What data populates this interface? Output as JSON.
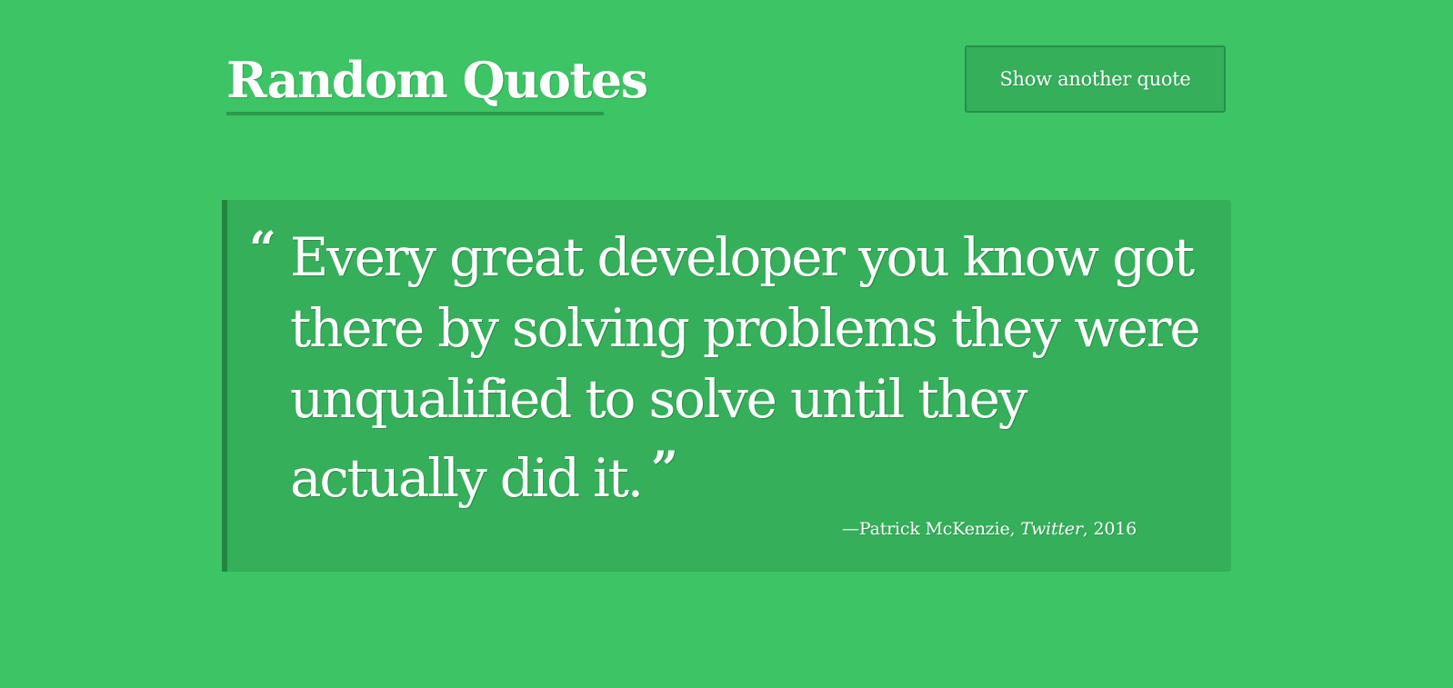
{
  "page": {
    "title": "Random Quotes",
    "background_color": "#3cc465",
    "accent_color": "#24853f"
  },
  "header": {
    "button_label": "Show another quote"
  },
  "quote": {
    "open_mark": "“",
    "text": "Every great developer you know got there by solving problems they were unqualified to solve until they actually did it.",
    "close_mark": "”",
    "attribution": {
      "prefix": "—",
      "author": "Patrick McKenzie",
      "separator_1": ", ",
      "source": "Twitter",
      "separator_2": ", ",
      "year": "2016"
    }
  }
}
